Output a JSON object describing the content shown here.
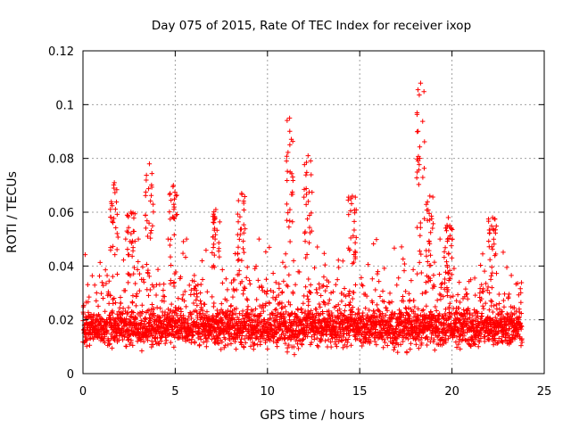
{
  "chart_data": {
    "type": "scatter",
    "title": "Day 075 of 2015, Rate Of TEC Index for receiver ixop",
    "xlabel": "GPS time / hours",
    "ylabel": "ROTI / TECUs",
    "xlim": [
      0,
      25
    ],
    "ylim": [
      0,
      0.12
    ],
    "xticks": [
      0,
      5,
      10,
      15,
      20,
      25
    ],
    "xtick_labels": [
      "0",
      "5",
      "10",
      "15",
      "20",
      "25"
    ],
    "yticks": [
      0,
      0.02,
      0.04,
      0.06,
      0.08,
      0.1,
      0.12
    ],
    "ytick_labels": [
      "0",
      "0.02",
      "0.04",
      "0.06",
      "0.08",
      "0.1",
      "0.12"
    ],
    "grid": true,
    "marker": "+",
    "color": "#ff0000",
    "series": [
      {
        "name": "ROTI",
        "x_range": [
          0,
          23.8
        ],
        "base_level_range": [
          0.005,
          0.035
        ],
        "typical_value": 0.017,
        "peaks": [
          {
            "x": 1.7,
            "y": 0.071
          },
          {
            "x": 2.6,
            "y": 0.06
          },
          {
            "x": 3.6,
            "y": 0.078
          },
          {
            "x": 4.9,
            "y": 0.07
          },
          {
            "x": 7.2,
            "y": 0.061
          },
          {
            "x": 8.6,
            "y": 0.067
          },
          {
            "x": 11.2,
            "y": 0.095
          },
          {
            "x": 12.2,
            "y": 0.081
          },
          {
            "x": 14.6,
            "y": 0.066
          },
          {
            "x": 18.3,
            "y": 0.108
          },
          {
            "x": 18.8,
            "y": 0.066
          },
          {
            "x": 19.8,
            "y": 0.058
          },
          {
            "x": 22.2,
            "y": 0.058
          }
        ]
      }
    ]
  }
}
